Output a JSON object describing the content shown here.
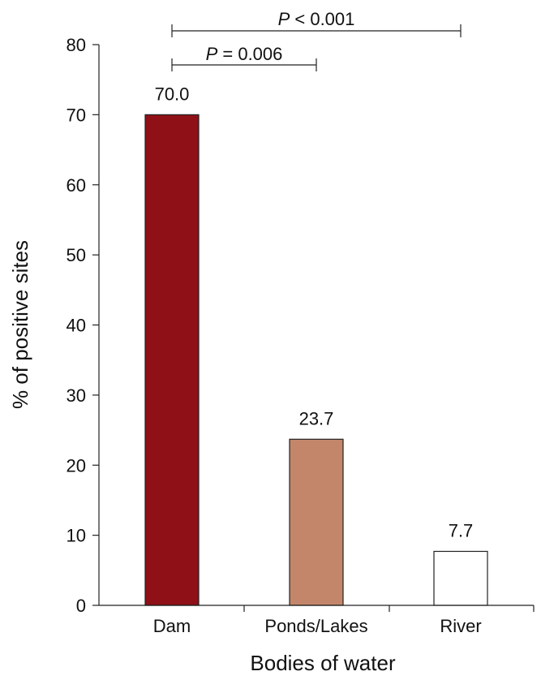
{
  "chart_data": {
    "type": "bar",
    "categories": [
      "Dam",
      "Ponds/Lakes",
      "River"
    ],
    "values": [
      70.0,
      23.7,
      7.7
    ],
    "value_labels": [
      "70.0",
      "23.7",
      "7.7"
    ],
    "bar_colors": [
      "#8F1016",
      "#C4866A",
      "#FFFFFF"
    ],
    "bar_stroke": "#222222",
    "xlabel": "Bodies of water",
    "ylabel": "% of positive sites",
    "ylim": [
      0,
      80
    ],
    "yticks": [
      0,
      10,
      20,
      30,
      40,
      50,
      60,
      70,
      80
    ],
    "grid": false,
    "legend": "none",
    "annotations": [
      {
        "from": "Dam",
        "to": "Ponds/Lakes",
        "label_prefix": "P",
        "label_rest": " = 0.006"
      },
      {
        "from": "Dam",
        "to": "River",
        "label_prefix": "P",
        "label_rest": " < 0.001"
      }
    ]
  }
}
